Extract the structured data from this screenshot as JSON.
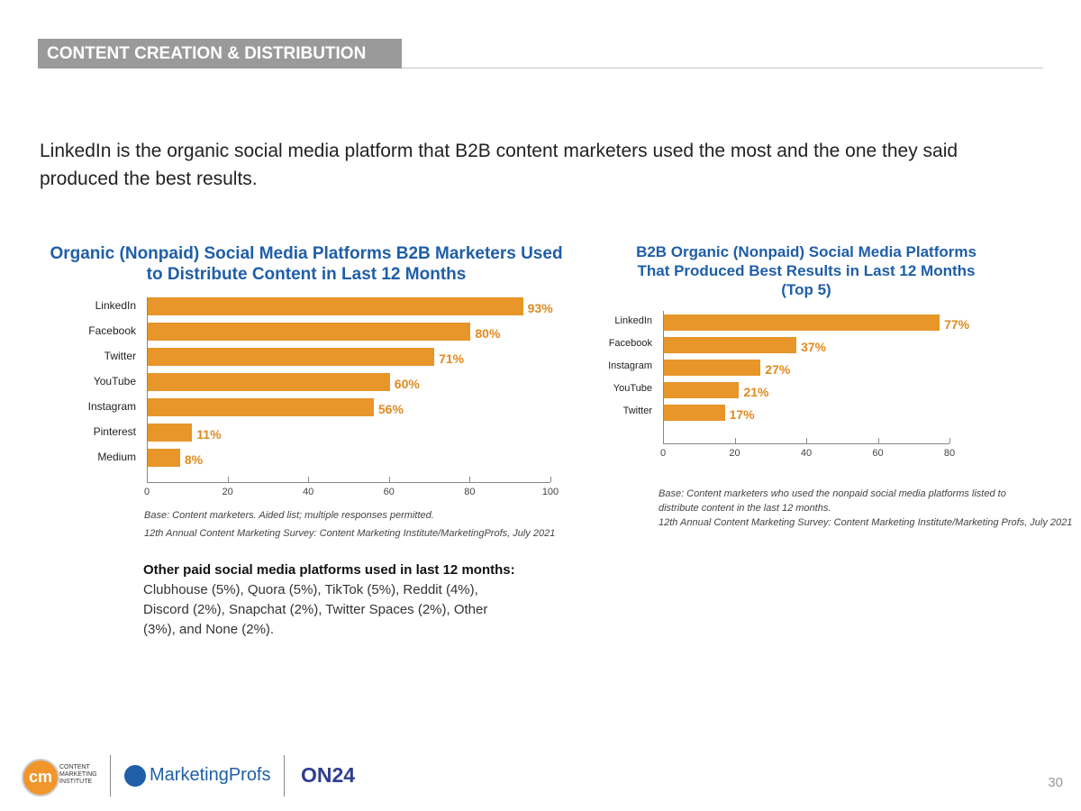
{
  "header": {
    "section": "CONTENT CREATION & DISTRIBUTION"
  },
  "intro": "LinkedIn is the organic social media platform that B2B content marketers used the most and the one they said produced  the best results.",
  "chart_data": [
    {
      "type": "bar",
      "orientation": "horizontal",
      "title": "Organic (Nonpaid) Social Media Platforms B2B Marketers Used to Distribute Content in Last 12 Months",
      "categories": [
        "LinkedIn",
        "Facebook",
        "Twitter",
        "YouTube",
        "Instagram",
        "Pinterest",
        "Medium"
      ],
      "values": [
        93,
        80,
        71,
        60,
        56,
        11,
        8
      ],
      "labels": [
        "93%",
        "80%",
        "71%",
        "60%",
        "56%",
        "11%",
        "8%"
      ],
      "xlim": [
        0,
        100
      ],
      "xticks": [
        "0",
        "20",
        "40",
        "60",
        "80",
        "100"
      ],
      "color": "#e8952a",
      "notes": [
        "Base: Content marketers. Aided list; multiple responses permitted.",
        "12th Annual Content Marketing Survey: Content Marketing Institute/MarketingProfs, July 2021"
      ]
    },
    {
      "type": "bar",
      "orientation": "horizontal",
      "title": "B2B Organic (Nonpaid) Social Media Platforms That Produced Best Results in Last 12 Months (Top 5)",
      "categories": [
        "LinkedIn",
        "Facebook",
        "Instagram",
        "YouTube",
        "Twitter"
      ],
      "values": [
        77,
        37,
        27,
        21,
        17
      ],
      "labels": [
        "77%",
        "37%",
        "27%",
        "21%",
        "17%"
      ],
      "xlim": [
        0,
        80
      ],
      "xticks": [
        "0",
        "20",
        "40",
        "60",
        "80"
      ],
      "color": "#e8952a",
      "notes": [
        "Base: Content marketers who used the nonpaid social media platforms listed to",
        "distribute content in the last 12 months.",
        "12th Annual Content Marketing Survey: Content Marketing Institute/Marketing Profs, July 2021"
      ]
    }
  ],
  "other": {
    "heading": "Other paid social media platforms used in last 12 months:",
    "text": "Clubhouse (5%), Quora (5%), TikTok (5%), Reddit (4%), Discord (2%), Snapchat (2%), Twitter Spaces (2%), Other (3%), and None (2%)."
  },
  "footer": {
    "logos": [
      "CONTENT MARKETING INSTITUTE",
      "MarketingProfs",
      "ON24"
    ],
    "cmi_mark": "cm",
    "page": "30"
  }
}
